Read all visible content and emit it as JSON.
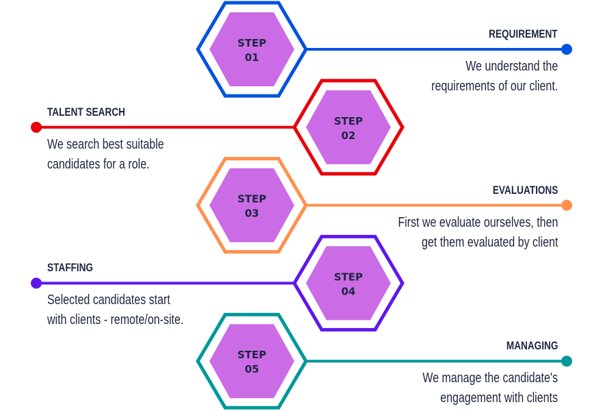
{
  "colors": {
    "hex_fill": "#cb6ce6",
    "text": "#1d2540"
  },
  "steps": [
    {
      "step_label": "STEP",
      "number": "01",
      "title": "REQUIREMENT",
      "lines": [
        "We understand the",
        "requirements of our client."
      ],
      "color": "#0052e0",
      "side": "right"
    },
    {
      "step_label": "STEP",
      "number": "02",
      "title": "TALENT SEARCH",
      "lines": [
        "We search best suitable",
        "candidates for a role."
      ],
      "color": "#e8000b",
      "side": "left"
    },
    {
      "step_label": "STEP",
      "number": "03",
      "title": "EVALUATIONS",
      "lines": [
        "First we evaluate ourselves, then",
        "get them evaluated by client"
      ],
      "color": "#ff914d",
      "side": "right"
    },
    {
      "step_label": "STEP",
      "number": "04",
      "title": "STAFFING",
      "lines": [
        "Selected candidates start",
        "with clients - remote/on-site."
      ],
      "color": "#5e17eb",
      "side": "left"
    },
    {
      "step_label": "STEP",
      "number": "05",
      "title": "MANAGING",
      "lines": [
        "We manage the candidate's",
        "engagement with clients"
      ],
      "color": "#00989a",
      "side": "right"
    }
  ]
}
